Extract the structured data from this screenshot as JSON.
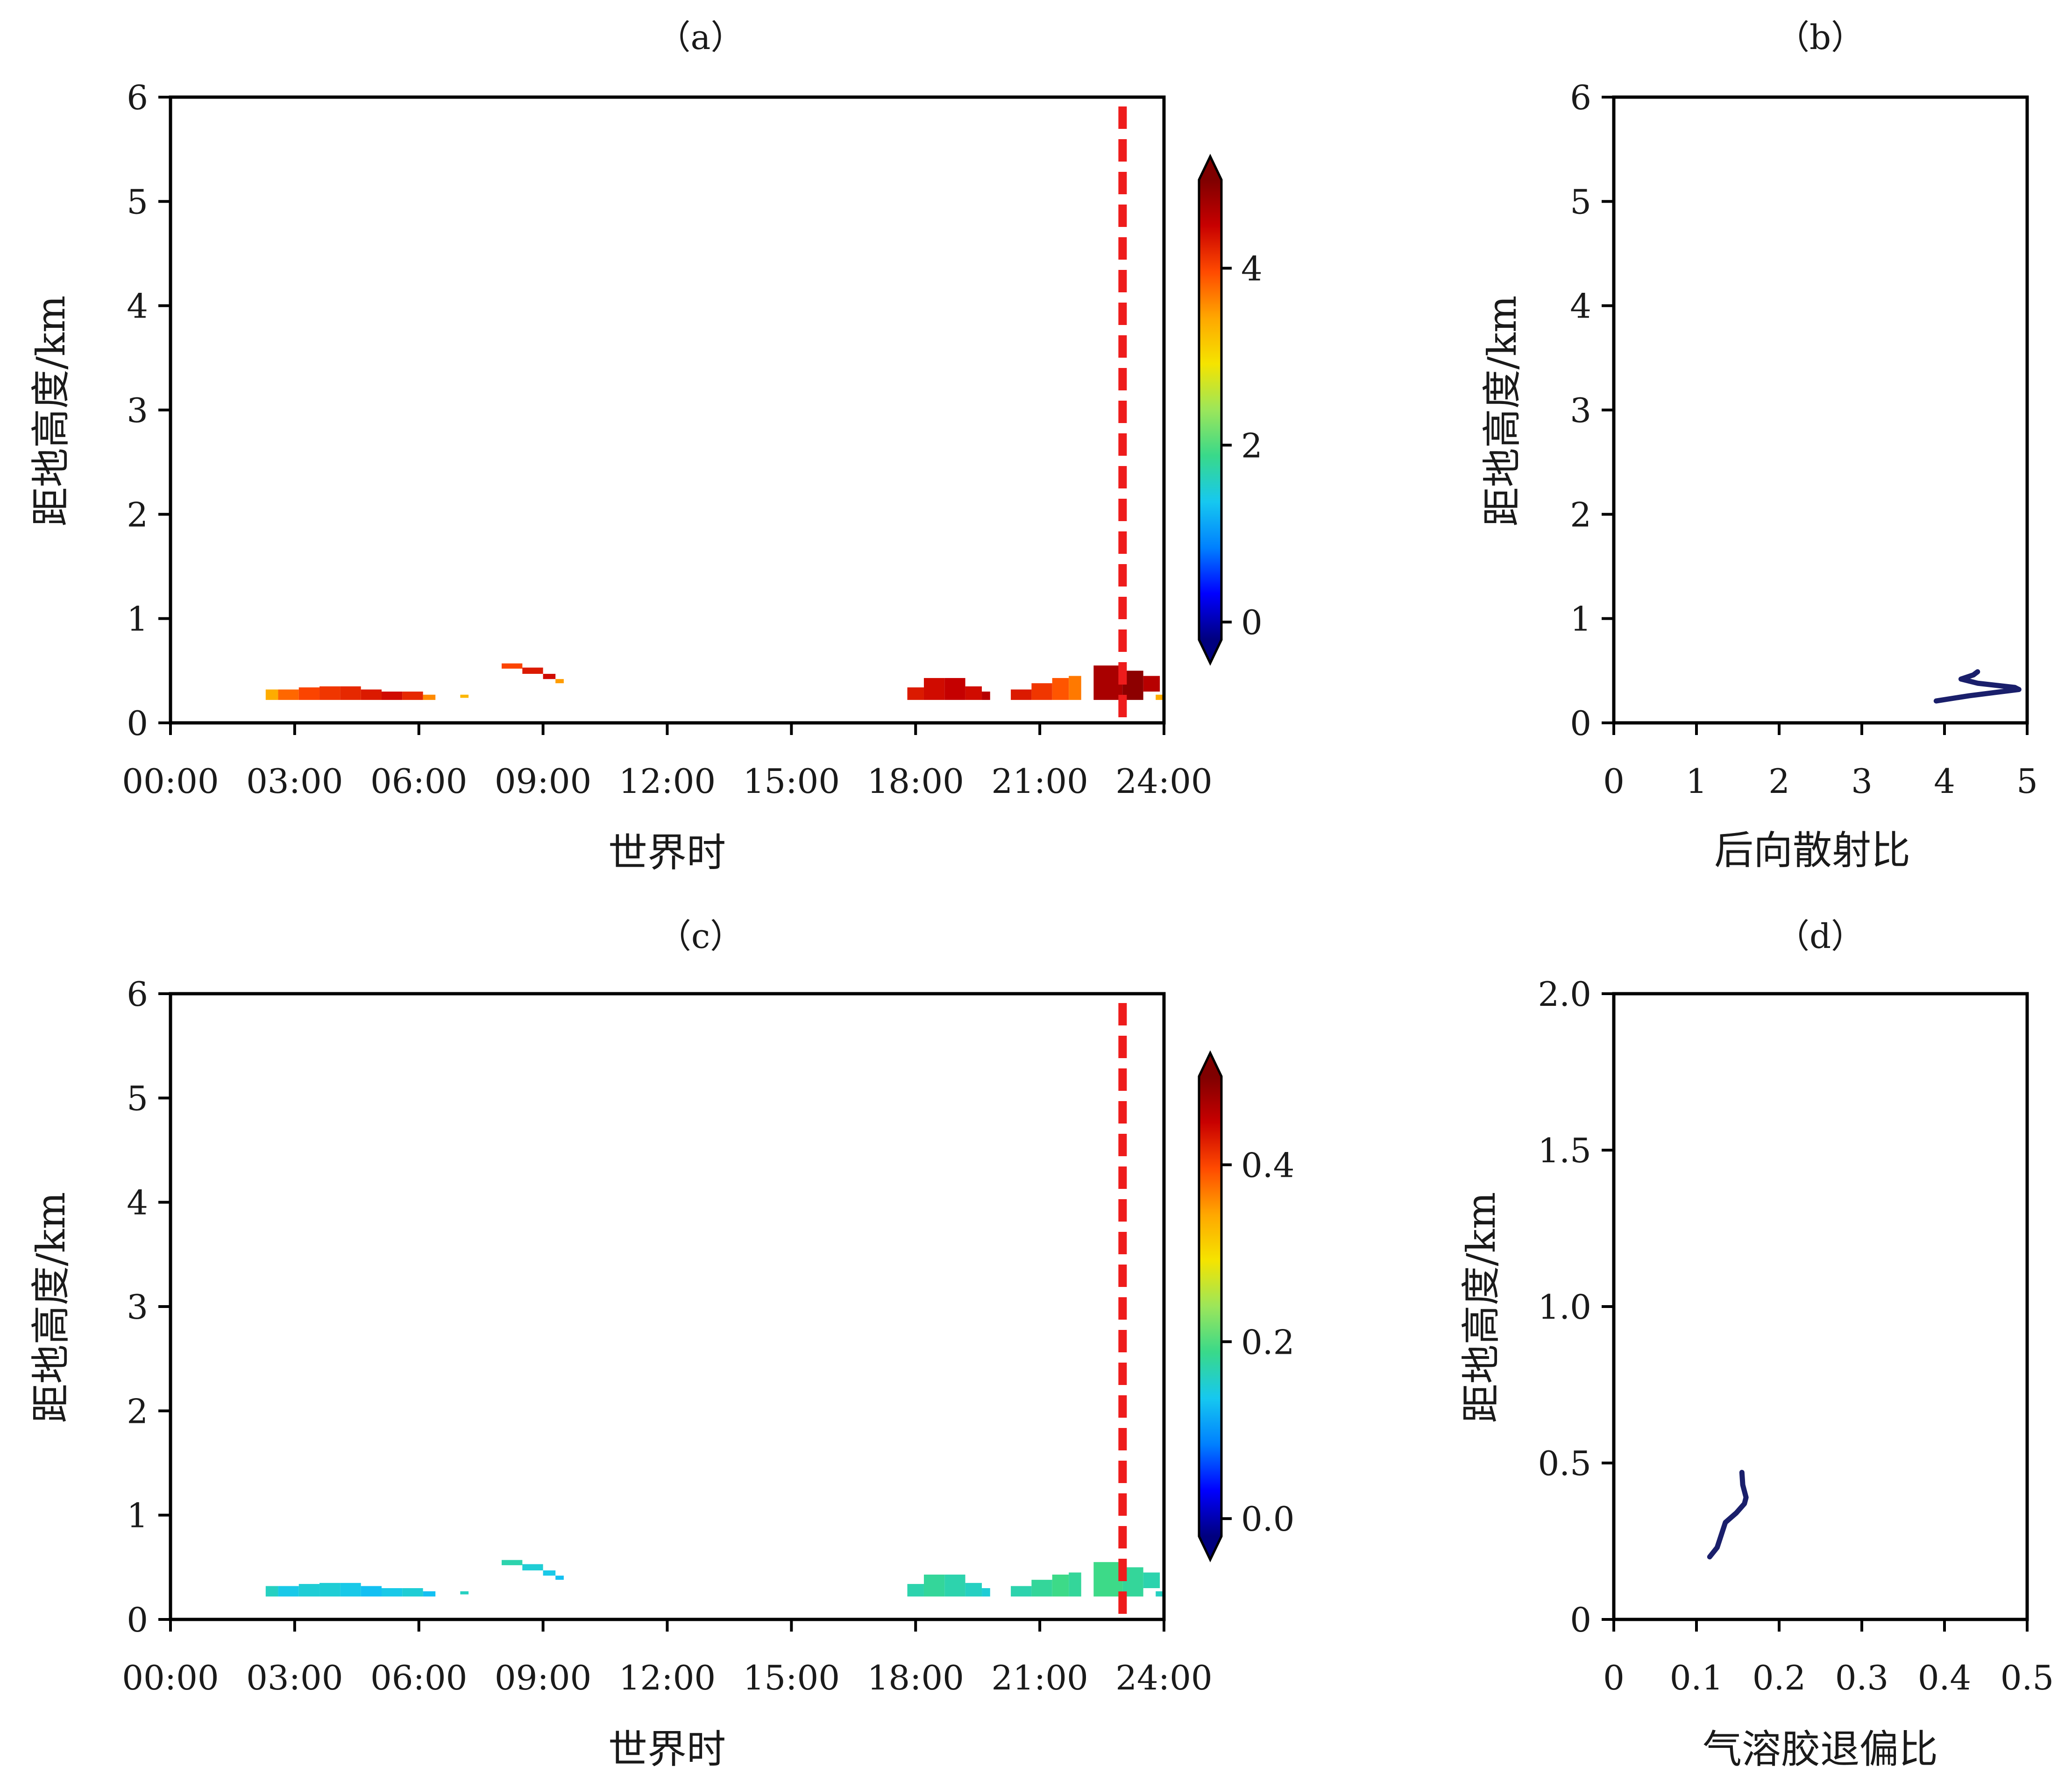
{
  "colors": {
    "marker_line": "#ee1c1c",
    "profile_line": "#1a1f6b",
    "colormap": [
      "#00007f",
      "#0000ff",
      "#0080ff",
      "#16c8f0",
      "#39d98a",
      "#9ce65a",
      "#f5e400",
      "#ffa700",
      "#ff4a00",
      "#c80000",
      "#7f0000"
    ]
  },
  "chart_data": [
    {
      "panel": "a",
      "type": "heatmap",
      "title": "（a）",
      "xlabel": "世界时",
      "ylabel": "距地高度/km",
      "xticklabels": [
        "00:00",
        "03:00",
        "06:00",
        "09:00",
        "12:00",
        "15:00",
        "18:00",
        "21:00",
        "24:00"
      ],
      "xlim": [
        0,
        24
      ],
      "ylim": [
        0,
        6
      ],
      "yticks": [
        "0",
        "1",
        "2",
        "3",
        "4",
        "5",
        "6"
      ],
      "colorbar": {
        "range": [
          -0.2,
          5.0
        ],
        "ticks": [
          "0",
          "2",
          "4"
        ],
        "extend": "both"
      },
      "marker_time": 23.0,
      "cells": [
        {
          "t0": 2.3,
          "t1": 2.6,
          "z0": 0.22,
          "z1": 0.32,
          "v": 3.4
        },
        {
          "t0": 2.6,
          "t1": 3.1,
          "z0": 0.22,
          "z1": 0.32,
          "v": 3.8
        },
        {
          "t0": 3.1,
          "t1": 3.6,
          "z0": 0.22,
          "z1": 0.34,
          "v": 4.0
        },
        {
          "t0": 3.6,
          "t1": 4.1,
          "z0": 0.22,
          "z1": 0.35,
          "v": 4.1
        },
        {
          "t0": 4.1,
          "t1": 4.6,
          "z0": 0.22,
          "z1": 0.35,
          "v": 4.2
        },
        {
          "t0": 4.6,
          "t1": 5.1,
          "z0": 0.22,
          "z1": 0.32,
          "v": 4.3
        },
        {
          "t0": 5.1,
          "t1": 5.6,
          "z0": 0.22,
          "z1": 0.3,
          "v": 4.4
        },
        {
          "t0": 5.6,
          "t1": 6.1,
          "z0": 0.22,
          "z1": 0.3,
          "v": 4.2
        },
        {
          "t0": 6.1,
          "t1": 6.4,
          "z0": 0.22,
          "z1": 0.27,
          "v": 3.6
        },
        {
          "t0": 7.0,
          "t1": 7.2,
          "z0": 0.24,
          "z1": 0.27,
          "v": 3.3
        },
        {
          "t0": 8.0,
          "t1": 8.5,
          "z0": 0.52,
          "z1": 0.57,
          "v": 4.0
        },
        {
          "t0": 8.5,
          "t1": 9.0,
          "z0": 0.47,
          "z1": 0.53,
          "v": 4.3
        },
        {
          "t0": 9.0,
          "t1": 9.3,
          "z0": 0.42,
          "z1": 0.47,
          "v": 4.4
        },
        {
          "t0": 9.3,
          "t1": 9.5,
          "z0": 0.38,
          "z1": 0.42,
          "v": 3.5
        },
        {
          "t0": 17.8,
          "t1": 18.2,
          "z0": 0.22,
          "z1": 0.34,
          "v": 4.3
        },
        {
          "t0": 18.2,
          "t1": 18.7,
          "z0": 0.22,
          "z1": 0.43,
          "v": 4.4
        },
        {
          "t0": 18.7,
          "t1": 19.2,
          "z0": 0.22,
          "z1": 0.43,
          "v": 4.5
        },
        {
          "t0": 19.2,
          "t1": 19.6,
          "z0": 0.22,
          "z1": 0.35,
          "v": 4.4
        },
        {
          "t0": 19.6,
          "t1": 19.8,
          "z0": 0.22,
          "z1": 0.3,
          "v": 4.6
        },
        {
          "t0": 20.3,
          "t1": 20.8,
          "z0": 0.22,
          "z1": 0.32,
          "v": 4.3
        },
        {
          "t0": 20.8,
          "t1": 21.3,
          "z0": 0.22,
          "z1": 0.38,
          "v": 4.1
        },
        {
          "t0": 21.3,
          "t1": 21.7,
          "z0": 0.22,
          "z1": 0.43,
          "v": 3.9
        },
        {
          "t0": 21.7,
          "t1": 22.0,
          "z0": 0.22,
          "z1": 0.45,
          "v": 3.7
        },
        {
          "t0": 22.3,
          "t1": 23.0,
          "z0": 0.22,
          "z1": 0.55,
          "v": 4.7
        },
        {
          "t0": 23.0,
          "t1": 23.5,
          "z0": 0.22,
          "z1": 0.5,
          "v": 4.9
        },
        {
          "t0": 23.5,
          "t1": 23.9,
          "z0": 0.3,
          "z1": 0.45,
          "v": 4.6
        },
        {
          "t0": 23.8,
          "t1": 24.0,
          "z0": 0.22,
          "z1": 0.27,
          "v": 3.4
        }
      ]
    },
    {
      "panel": "b",
      "type": "line",
      "title": "（b）",
      "xlabel": "后向散射比",
      "ylabel": "距地高度/km",
      "xlim": [
        0,
        5
      ],
      "ylim": [
        0,
        6
      ],
      "xticks": [
        "0",
        "1",
        "2",
        "3",
        "4",
        "5"
      ],
      "yticks": [
        "0",
        "1",
        "2",
        "3",
        "4",
        "5",
        "6"
      ],
      "x": [
        3.9,
        4.3,
        4.6,
        4.9,
        4.85,
        4.4,
        4.2,
        4.35,
        4.4
      ],
      "y": [
        0.21,
        0.26,
        0.29,
        0.32,
        0.34,
        0.38,
        0.42,
        0.46,
        0.49
      ]
    },
    {
      "panel": "c",
      "type": "heatmap",
      "title": "（c）",
      "xlabel": "世界时",
      "ylabel": "距地高度/km",
      "xticklabels": [
        "00:00",
        "03:00",
        "06:00",
        "09:00",
        "12:00",
        "15:00",
        "18:00",
        "21:00",
        "24:00"
      ],
      "xlim": [
        0,
        24
      ],
      "ylim": [
        0,
        6
      ],
      "yticks": [
        "0",
        "1",
        "2",
        "3",
        "4",
        "5",
        "6"
      ],
      "colorbar": {
        "range": [
          -0.02,
          0.5
        ],
        "ticks": [
          "0.0",
          "0.2",
          "0.4"
        ],
        "extend": "both"
      },
      "marker_time": 23.0,
      "cells": [
        {
          "t0": 2.3,
          "t1": 2.6,
          "z0": 0.22,
          "z1": 0.32,
          "v": 0.16
        },
        {
          "t0": 2.6,
          "t1": 3.1,
          "z0": 0.22,
          "z1": 0.32,
          "v": 0.14
        },
        {
          "t0": 3.1,
          "t1": 3.6,
          "z0": 0.22,
          "z1": 0.34,
          "v": 0.15
        },
        {
          "t0": 3.6,
          "t1": 4.1,
          "z0": 0.22,
          "z1": 0.35,
          "v": 0.15
        },
        {
          "t0": 4.1,
          "t1": 4.6,
          "z0": 0.22,
          "z1": 0.35,
          "v": 0.14
        },
        {
          "t0": 4.6,
          "t1": 5.1,
          "z0": 0.22,
          "z1": 0.32,
          "v": 0.13
        },
        {
          "t0": 5.1,
          "t1": 5.6,
          "z0": 0.22,
          "z1": 0.3,
          "v": 0.14
        },
        {
          "t0": 5.6,
          "t1": 6.1,
          "z0": 0.22,
          "z1": 0.3,
          "v": 0.15
        },
        {
          "t0": 6.1,
          "t1": 6.4,
          "z0": 0.22,
          "z1": 0.27,
          "v": 0.13
        },
        {
          "t0": 7.0,
          "t1": 7.2,
          "z0": 0.24,
          "z1": 0.27,
          "v": 0.16
        },
        {
          "t0": 8.0,
          "t1": 8.5,
          "z0": 0.52,
          "z1": 0.57,
          "v": 0.17
        },
        {
          "t0": 8.5,
          "t1": 9.0,
          "z0": 0.47,
          "z1": 0.53,
          "v": 0.15
        },
        {
          "t0": 9.0,
          "t1": 9.3,
          "z0": 0.42,
          "z1": 0.47,
          "v": 0.14
        },
        {
          "t0": 9.3,
          "t1": 9.5,
          "z0": 0.38,
          "z1": 0.42,
          "v": 0.13
        },
        {
          "t0": 17.8,
          "t1": 18.2,
          "z0": 0.22,
          "z1": 0.34,
          "v": 0.17
        },
        {
          "t0": 18.2,
          "t1": 18.7,
          "z0": 0.22,
          "z1": 0.43,
          "v": 0.18
        },
        {
          "t0": 18.7,
          "t1": 19.2,
          "z0": 0.22,
          "z1": 0.43,
          "v": 0.17
        },
        {
          "t0": 19.2,
          "t1": 19.6,
          "z0": 0.22,
          "z1": 0.35,
          "v": 0.16
        },
        {
          "t0": 19.6,
          "t1": 19.8,
          "z0": 0.22,
          "z1": 0.3,
          "v": 0.15
        },
        {
          "t0": 20.3,
          "t1": 20.8,
          "z0": 0.22,
          "z1": 0.32,
          "v": 0.17
        },
        {
          "t0": 20.8,
          "t1": 21.3,
          "z0": 0.22,
          "z1": 0.38,
          "v": 0.18
        },
        {
          "t0": 21.3,
          "t1": 21.7,
          "z0": 0.22,
          "z1": 0.43,
          "v": 0.19
        },
        {
          "t0": 21.7,
          "t1": 22.0,
          "z0": 0.22,
          "z1": 0.45,
          "v": 0.18
        },
        {
          "t0": 22.3,
          "t1": 23.0,
          "z0": 0.22,
          "z1": 0.55,
          "v": 0.19
        },
        {
          "t0": 23.0,
          "t1": 23.5,
          "z0": 0.22,
          "z1": 0.5,
          "v": 0.18
        },
        {
          "t0": 23.5,
          "t1": 23.9,
          "z0": 0.3,
          "z1": 0.45,
          "v": 0.17
        },
        {
          "t0": 23.8,
          "t1": 24.0,
          "z0": 0.22,
          "z1": 0.27,
          "v": 0.16
        }
      ]
    },
    {
      "panel": "d",
      "type": "line",
      "title": "（d）",
      "xlabel": "气溶胶退偏比",
      "ylabel": "距地高度/km",
      "xlim": [
        0,
        0.5
      ],
      "ylim": [
        0,
        2.0
      ],
      "xticks": [
        "0",
        "0.1",
        "0.2",
        "0.3",
        "0.4",
        "0.5"
      ],
      "yticks": [
        "0",
        "0.5",
        "1.0",
        "1.5",
        "2.0"
      ],
      "x": [
        0.116,
        0.125,
        0.13,
        0.135,
        0.148,
        0.158,
        0.16,
        0.156,
        0.155
      ],
      "y": [
        0.2,
        0.23,
        0.27,
        0.31,
        0.34,
        0.37,
        0.39,
        0.43,
        0.47
      ]
    }
  ]
}
